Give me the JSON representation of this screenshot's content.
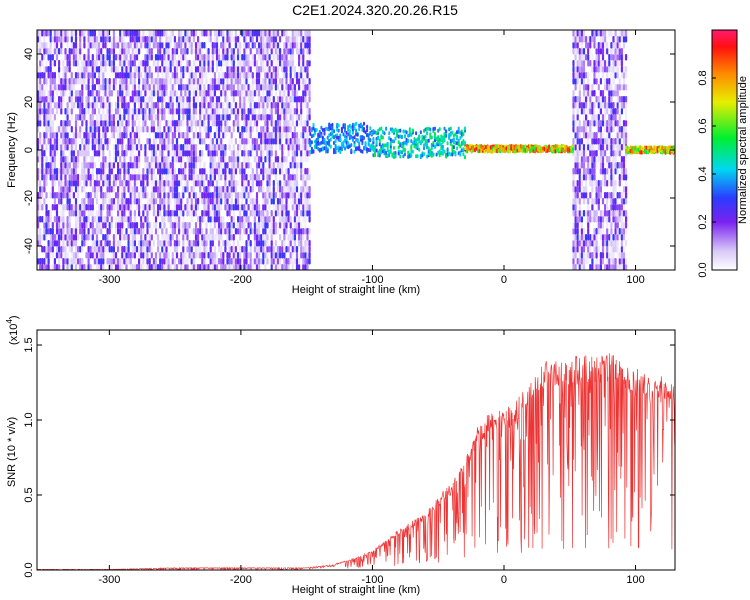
{
  "title": "C2E1.2024.320.20.26.R15",
  "chart_data": [
    {
      "type": "heatmap",
      "xlabel": "Height of straight line (km)",
      "ylabel": "Frequency (Hz)",
      "xlim": [
        -355,
        130
      ],
      "ylim": [
        -50,
        50
      ],
      "xticks": [
        "-300",
        "-200",
        "-100",
        "0",
        "100"
      ],
      "yticks": [
        "-40",
        "-20",
        "0",
        "20",
        "40"
      ],
      "colorbar": {
        "label": "Normalized spectral amplitude",
        "range": [
          0,
          1
        ],
        "ticks": [
          "0.0",
          "0.2",
          "0.4",
          "0.6",
          "0.8"
        ]
      },
      "regions": [
        {
          "x": [
            -355,
            -148
          ],
          "description_level": "broadband noise",
          "amplitude": 0.15
        },
        {
          "x": [
            -148,
            -100
          ],
          "freq_center": 5,
          "amplitude": 0.45
        },
        {
          "x": [
            -100,
            -30
          ],
          "freq_center": 3,
          "amplitude": 0.55
        },
        {
          "x": [
            -30,
            52
          ],
          "freq_center": 0.5,
          "amplitude": 0.95
        },
        {
          "x": [
            52,
            92
          ],
          "description_level": "broadband noise",
          "amplitude": 0.15
        },
        {
          "x": [
            92,
            130
          ],
          "freq_center": 0,
          "amplitude": 0.95
        }
      ]
    },
    {
      "type": "line",
      "xlabel": "Height of straight line (km)",
      "ylabel": "SNR (10 * v/v)",
      "multiplier": "(x10",
      "multiplier_exp": "4",
      "multiplier_close": ")",
      "xlim": [
        -355,
        130
      ],
      "ylim": [
        0,
        1.6
      ],
      "xticks": [
        "-300",
        "-200",
        "-100",
        "0",
        "100"
      ],
      "yticks": [
        "0.0",
        "0.5",
        "1.0",
        "1.5"
      ],
      "color": "#ee3333",
      "x": [
        -355,
        -300,
        -250,
        -200,
        -150,
        -130,
        -110,
        -100,
        -90,
        -80,
        -70,
        -60,
        -50,
        -40,
        -30,
        -20,
        -10,
        0,
        10,
        20,
        30,
        40,
        50,
        60,
        70,
        80,
        90,
        100,
        110,
        120,
        125
      ],
      "y": [
        0.0,
        0.0,
        0.01,
        0.01,
        0.01,
        0.03,
        0.08,
        0.12,
        0.18,
        0.25,
        0.3,
        0.35,
        0.45,
        0.55,
        0.7,
        0.9,
        1.0,
        1.0,
        1.05,
        1.2,
        1.3,
        1.32,
        1.33,
        1.33,
        1.32,
        1.35,
        1.3,
        1.25,
        1.22,
        1.2,
        1.15
      ]
    }
  ]
}
